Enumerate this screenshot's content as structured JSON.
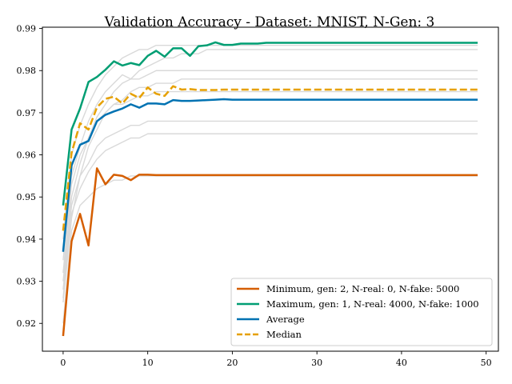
{
  "chart_data": {
    "type": "line",
    "title": "Validation Accuracy - Dataset: MNIST, N-Gen: 3",
    "xlabel": "",
    "ylabel": "",
    "xlim": [
      -2.45,
      51.45
    ],
    "ylim": [
      0.9134,
      0.9903
    ],
    "xticks": [
      0,
      10,
      20,
      30,
      40,
      50
    ],
    "yticks": [
      0.92,
      0.93,
      0.94,
      0.95,
      0.96,
      0.97,
      0.98,
      0.99
    ],
    "ytick_labels": [
      "0.92",
      "0.93",
      "0.94",
      "0.95",
      "0.96",
      "0.97",
      "0.98",
      "0.99"
    ],
    "xtick_labels": [
      "0",
      "10",
      "20",
      "30",
      "40",
      "50"
    ],
    "grid": false,
    "legend_position": "lower-right",
    "background_series_color": "#d9d9d9",
    "background_series": [
      [
        0.935,
        0.955,
        0.962,
        0.968,
        0.972,
        0.975,
        0.977,
        0.979,
        0.978,
        0.98,
        0.981,
        0.982,
        0.983,
        0.983,
        0.984,
        0.984,
        0.984,
        0.985,
        0.985,
        0.985,
        0.985,
        0.985,
        0.985,
        0.985,
        0.985,
        0.985,
        0.985,
        0.985,
        0.985,
        0.985,
        0.985,
        0.985,
        0.985,
        0.985,
        0.985,
        0.985,
        0.985,
        0.985,
        0.985,
        0.985,
        0.985,
        0.985,
        0.985,
        0.985,
        0.985,
        0.985,
        0.985,
        0.985,
        0.985,
        0.985
      ],
      [
        0.94,
        0.96,
        0.967,
        0.972,
        0.976,
        0.979,
        0.981,
        0.983,
        0.984,
        0.985,
        0.985,
        0.986,
        0.986,
        0.986,
        0.986,
        0.986,
        0.986,
        0.986,
        0.986,
        0.986,
        0.986,
        0.986,
        0.986,
        0.986,
        0.986,
        0.986,
        0.986,
        0.986,
        0.986,
        0.986,
        0.986,
        0.986,
        0.986,
        0.986,
        0.986,
        0.986,
        0.986,
        0.986,
        0.986,
        0.986,
        0.986,
        0.986,
        0.986,
        0.986,
        0.986,
        0.986,
        0.986,
        0.986,
        0.986,
        0.986
      ],
      [
        0.93,
        0.95,
        0.958,
        0.964,
        0.969,
        0.972,
        0.975,
        0.977,
        0.978,
        0.978,
        0.979,
        0.98,
        0.98,
        0.98,
        0.98,
        0.98,
        0.98,
        0.98,
        0.98,
        0.98,
        0.98,
        0.98,
        0.98,
        0.98,
        0.98,
        0.98,
        0.98,
        0.98,
        0.98,
        0.98,
        0.98,
        0.98,
        0.98,
        0.98,
        0.98,
        0.98,
        0.98,
        0.98,
        0.98,
        0.98,
        0.98,
        0.98,
        0.98,
        0.98,
        0.98,
        0.98,
        0.98,
        0.98,
        0.98,
        0.98
      ],
      [
        0.925,
        0.945,
        0.955,
        0.962,
        0.966,
        0.97,
        0.972,
        0.973,
        0.975,
        0.976,
        0.976,
        0.977,
        0.977,
        0.977,
        0.978,
        0.978,
        0.978,
        0.978,
        0.978,
        0.978,
        0.978,
        0.978,
        0.978,
        0.978,
        0.978,
        0.978,
        0.978,
        0.978,
        0.978,
        0.978,
        0.978,
        0.978,
        0.978,
        0.978,
        0.978,
        0.978,
        0.978,
        0.978,
        0.978,
        0.978,
        0.978,
        0.978,
        0.978,
        0.978,
        0.978,
        0.978,
        0.978,
        0.978,
        0.978,
        0.978
      ],
      [
        0.932,
        0.953,
        0.96,
        0.964,
        0.968,
        0.97,
        0.972,
        0.972,
        0.973,
        0.974,
        0.974,
        0.975,
        0.975,
        0.975,
        0.975,
        0.975,
        0.975,
        0.975,
        0.975,
        0.975,
        0.975,
        0.975,
        0.975,
        0.975,
        0.975,
        0.975,
        0.975,
        0.975,
        0.975,
        0.975,
        0.975,
        0.975,
        0.975,
        0.975,
        0.975,
        0.975,
        0.975,
        0.975,
        0.975,
        0.975,
        0.975,
        0.975,
        0.975,
        0.975,
        0.975,
        0.975,
        0.975,
        0.975,
        0.975,
        0.975
      ],
      [
        0.928,
        0.948,
        0.955,
        0.958,
        0.962,
        0.964,
        0.965,
        0.966,
        0.967,
        0.967,
        0.968,
        0.968,
        0.968,
        0.968,
        0.968,
        0.968,
        0.968,
        0.968,
        0.968,
        0.968,
        0.968,
        0.968,
        0.968,
        0.968,
        0.968,
        0.968,
        0.968,
        0.968,
        0.968,
        0.968,
        0.968,
        0.968,
        0.968,
        0.968,
        0.968,
        0.968,
        0.968,
        0.968,
        0.968,
        0.968,
        0.968,
        0.968,
        0.968,
        0.968,
        0.968,
        0.968,
        0.968,
        0.968,
        0.968,
        0.968
      ],
      [
        0.926,
        0.946,
        0.952,
        0.956,
        0.959,
        0.961,
        0.962,
        0.963,
        0.964,
        0.964,
        0.965,
        0.965,
        0.965,
        0.965,
        0.965,
        0.965,
        0.965,
        0.965,
        0.965,
        0.965,
        0.965,
        0.965,
        0.965,
        0.965,
        0.965,
        0.965,
        0.965,
        0.965,
        0.965,
        0.965,
        0.965,
        0.965,
        0.965,
        0.965,
        0.965,
        0.965,
        0.965,
        0.965,
        0.965,
        0.965,
        0.965,
        0.965,
        0.965,
        0.965,
        0.965,
        0.965,
        0.965,
        0.965,
        0.965,
        0.965
      ],
      [
        0.92,
        0.942,
        0.948,
        0.95,
        0.952,
        0.953,
        0.954,
        0.954,
        0.955,
        0.955,
        0.955,
        0.955,
        0.955,
        0.955,
        0.955,
        0.955,
        0.955,
        0.955,
        0.955,
        0.955,
        0.955,
        0.955,
        0.955,
        0.955,
        0.955,
        0.955,
        0.955,
        0.955,
        0.955,
        0.955,
        0.955,
        0.955,
        0.955,
        0.955,
        0.955,
        0.955,
        0.955,
        0.955,
        0.955,
        0.955,
        0.955,
        0.955,
        0.955,
        0.955,
        0.955,
        0.955,
        0.955,
        0.955,
        0.955,
        0.955
      ]
    ],
    "series": [
      {
        "name": "Minimum, gen: 2, N-real: 0, N-fake: 5000",
        "color": "#d55e00",
        "dash": "solid",
        "values": [
          0.917,
          0.9395,
          0.946,
          0.9385,
          0.9568,
          0.953,
          0.9553,
          0.955,
          0.954,
          0.9553,
          0.9553,
          0.9552,
          0.9552,
          0.9552,
          0.9552,
          0.9552,
          0.9552,
          0.9552,
          0.9552,
          0.9552,
          0.9552,
          0.9552,
          0.9552,
          0.9552,
          0.9552,
          0.9552,
          0.9552,
          0.9552,
          0.9552,
          0.9552,
          0.9552,
          0.9552,
          0.9552,
          0.9552,
          0.9552,
          0.9552,
          0.9552,
          0.9552,
          0.9552,
          0.9552,
          0.9552,
          0.9552,
          0.9552,
          0.9552,
          0.9552,
          0.9552,
          0.9552,
          0.9552,
          0.9552,
          0.9552
        ]
      },
      {
        "name": "Maximum, gen: 1, N-real: 4000, N-fake: 1000",
        "color": "#009e73",
        "dash": "solid",
        "values": [
          0.948,
          0.966,
          0.971,
          0.9773,
          0.9785,
          0.9802,
          0.9822,
          0.9812,
          0.9818,
          0.9813,
          0.9835,
          0.9847,
          0.9833,
          0.9853,
          0.9853,
          0.9835,
          0.9858,
          0.986,
          0.9867,
          0.9861,
          0.9861,
          0.9864,
          0.9864,
          0.9864,
          0.9866,
          0.9866,
          0.9866,
          0.9866,
          0.9866,
          0.9866,
          0.9866,
          0.9866,
          0.9866,
          0.9866,
          0.9866,
          0.9866,
          0.9866,
          0.9866,
          0.9866,
          0.9866,
          0.9866,
          0.9866,
          0.9866,
          0.9866,
          0.9866,
          0.9866,
          0.9866,
          0.9866,
          0.9866,
          0.9866
        ]
      },
      {
        "name": "Average",
        "color": "#0072b2",
        "dash": "solid",
        "values": [
          0.937,
          0.9575,
          0.9624,
          0.9633,
          0.968,
          0.9695,
          0.9703,
          0.971,
          0.972,
          0.9712,
          0.9722,
          0.9722,
          0.972,
          0.973,
          0.9728,
          0.9728,
          0.9729,
          0.973,
          0.9731,
          0.9732,
          0.9731,
          0.9731,
          0.9731,
          0.9731,
          0.9731,
          0.9731,
          0.9731,
          0.9731,
          0.9731,
          0.9731,
          0.9731,
          0.9731,
          0.9731,
          0.9731,
          0.9731,
          0.9731,
          0.9731,
          0.9731,
          0.9731,
          0.9731,
          0.9731,
          0.9731,
          0.9731,
          0.9731,
          0.9731,
          0.9731,
          0.9731,
          0.9731,
          0.9731,
          0.9731
        ]
      },
      {
        "name": "Median",
        "color": "#e6a000",
        "dash": "dashed",
        "values": [
          0.942,
          0.9605,
          0.9675,
          0.966,
          0.9713,
          0.9733,
          0.9738,
          0.9722,
          0.9745,
          0.9735,
          0.976,
          0.9745,
          0.974,
          0.9763,
          0.9755,
          0.9756,
          0.9754,
          0.9754,
          0.9754,
          0.9755,
          0.9755,
          0.9755,
          0.9755,
          0.9755,
          0.9755,
          0.9755,
          0.9755,
          0.9755,
          0.9755,
          0.9755,
          0.9755,
          0.9755,
          0.9755,
          0.9755,
          0.9755,
          0.9755,
          0.9755,
          0.9755,
          0.9755,
          0.9755,
          0.9755,
          0.9755,
          0.9755,
          0.9755,
          0.9755,
          0.9755,
          0.9755,
          0.9755,
          0.9755,
          0.9755
        ]
      }
    ]
  }
}
